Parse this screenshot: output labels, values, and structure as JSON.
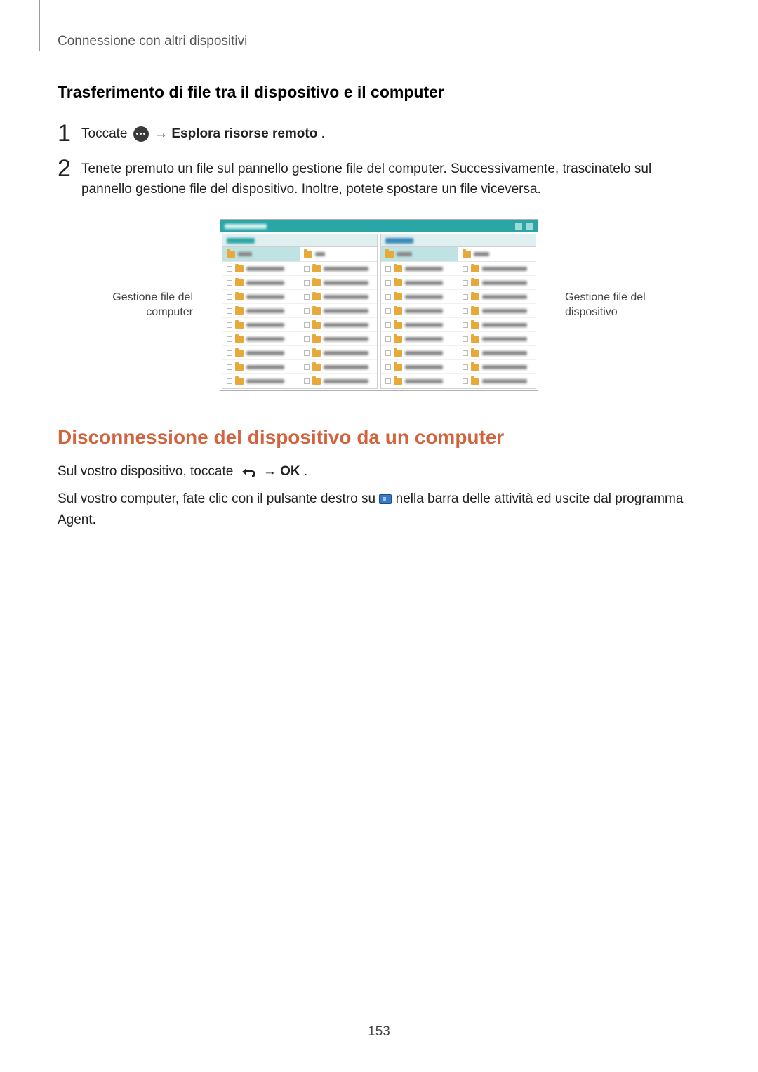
{
  "header": {
    "breadcrumb": "Connessione con altri dispositivi"
  },
  "section1": {
    "title": "Trasferimento di file tra il dispositivo e il computer",
    "step1": {
      "num": "1",
      "pre": "Toccate ",
      "arrow": " → ",
      "bold": "Esplora risorse remoto",
      "post": "."
    },
    "step2": {
      "num": "2",
      "text": "Tenete premuto un file sul pannello gestione file del computer. Successivamente, trascinatelo sul pannello gestione file del dispositivo. Inoltre, potete spostare un file viceversa."
    }
  },
  "figure": {
    "left_callout_l1": "Gestione file del",
    "left_callout_l2": "computer",
    "right_callout_l1": "Gestione file del",
    "right_callout_l2": "dispositivo",
    "rows_per_panel": 9
  },
  "section2": {
    "title": "Disconnessione del dispositivo da un computer",
    "p1_pre": "Sul vostro dispositivo, toccate ",
    "p1_arrow": " → ",
    "p1_bold": "OK",
    "p1_post": ".",
    "p2_pre": "Sul vostro computer, fate clic con il pulsante destro su ",
    "p2_post": " nella barra delle attività ed uscite dal programma Agent."
  },
  "page_number": "153"
}
